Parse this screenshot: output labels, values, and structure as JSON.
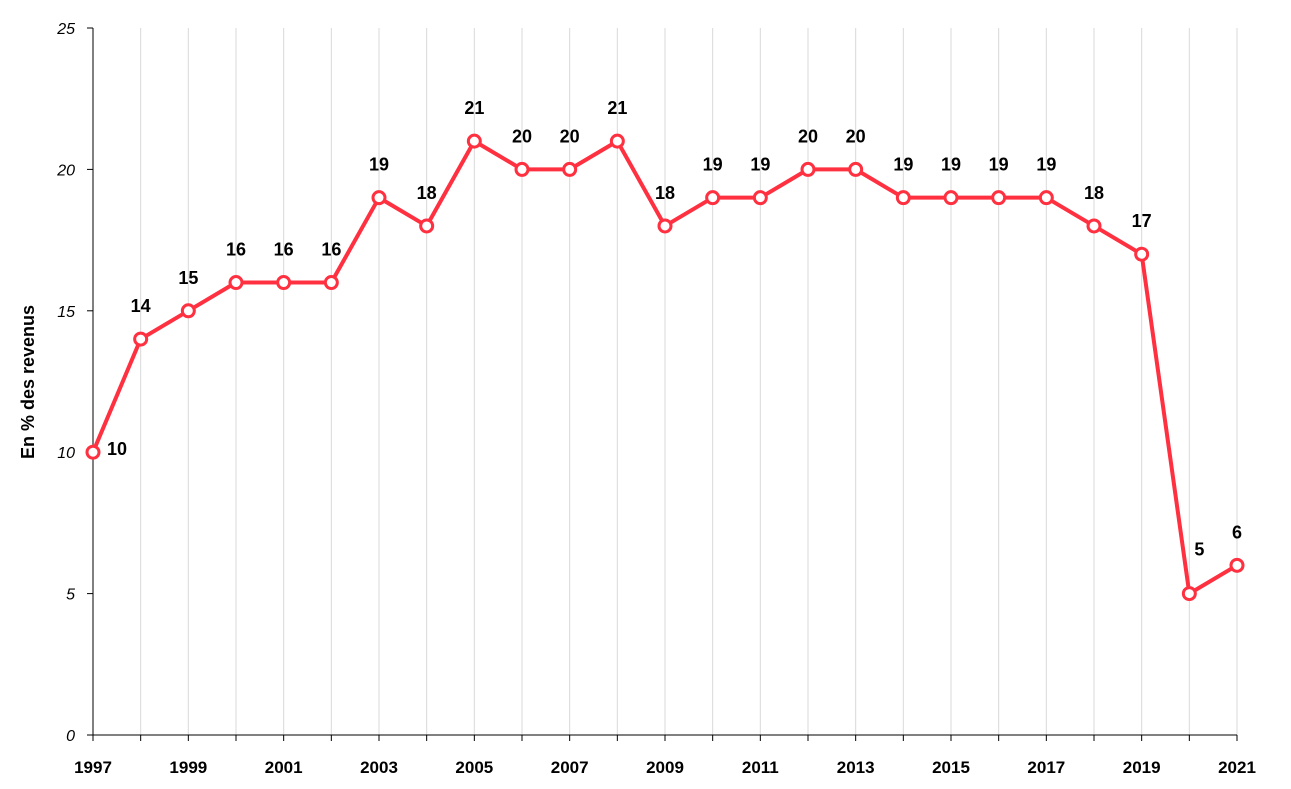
{
  "chart_data": {
    "type": "line",
    "title": "",
    "xlabel": "",
    "ylabel": "En % des revenus",
    "x": [
      1997,
      1998,
      1999,
      2000,
      2001,
      2002,
      2003,
      2004,
      2005,
      2006,
      2007,
      2008,
      2009,
      2010,
      2011,
      2012,
      2013,
      2014,
      2015,
      2016,
      2017,
      2018,
      2019,
      2020,
      2021
    ],
    "x_tick_labels": [
      "1997",
      "1999",
      "2001",
      "2003",
      "2005",
      "2007",
      "2009",
      "2011",
      "2013",
      "2015",
      "2017",
      "2019",
      "2021"
    ],
    "y_tick_labels": [
      "0",
      "5",
      "10",
      "15",
      "20",
      "25"
    ],
    "series": [
      {
        "values": [
          10,
          14,
          15,
          16,
          16,
          16,
          19,
          18,
          21,
          20,
          20,
          21,
          18,
          19,
          19,
          20,
          20,
          19,
          19,
          19,
          19,
          18,
          17,
          5,
          6
        ],
        "color": "#ff3040"
      }
    ],
    "ylim": [
      0,
      25
    ],
    "yticks": [
      0,
      5,
      10,
      15,
      20,
      25
    ],
    "grid": "vertical",
    "grid_color": "#d9d9d9",
    "axis_color": "#000000",
    "legend": "none"
  }
}
